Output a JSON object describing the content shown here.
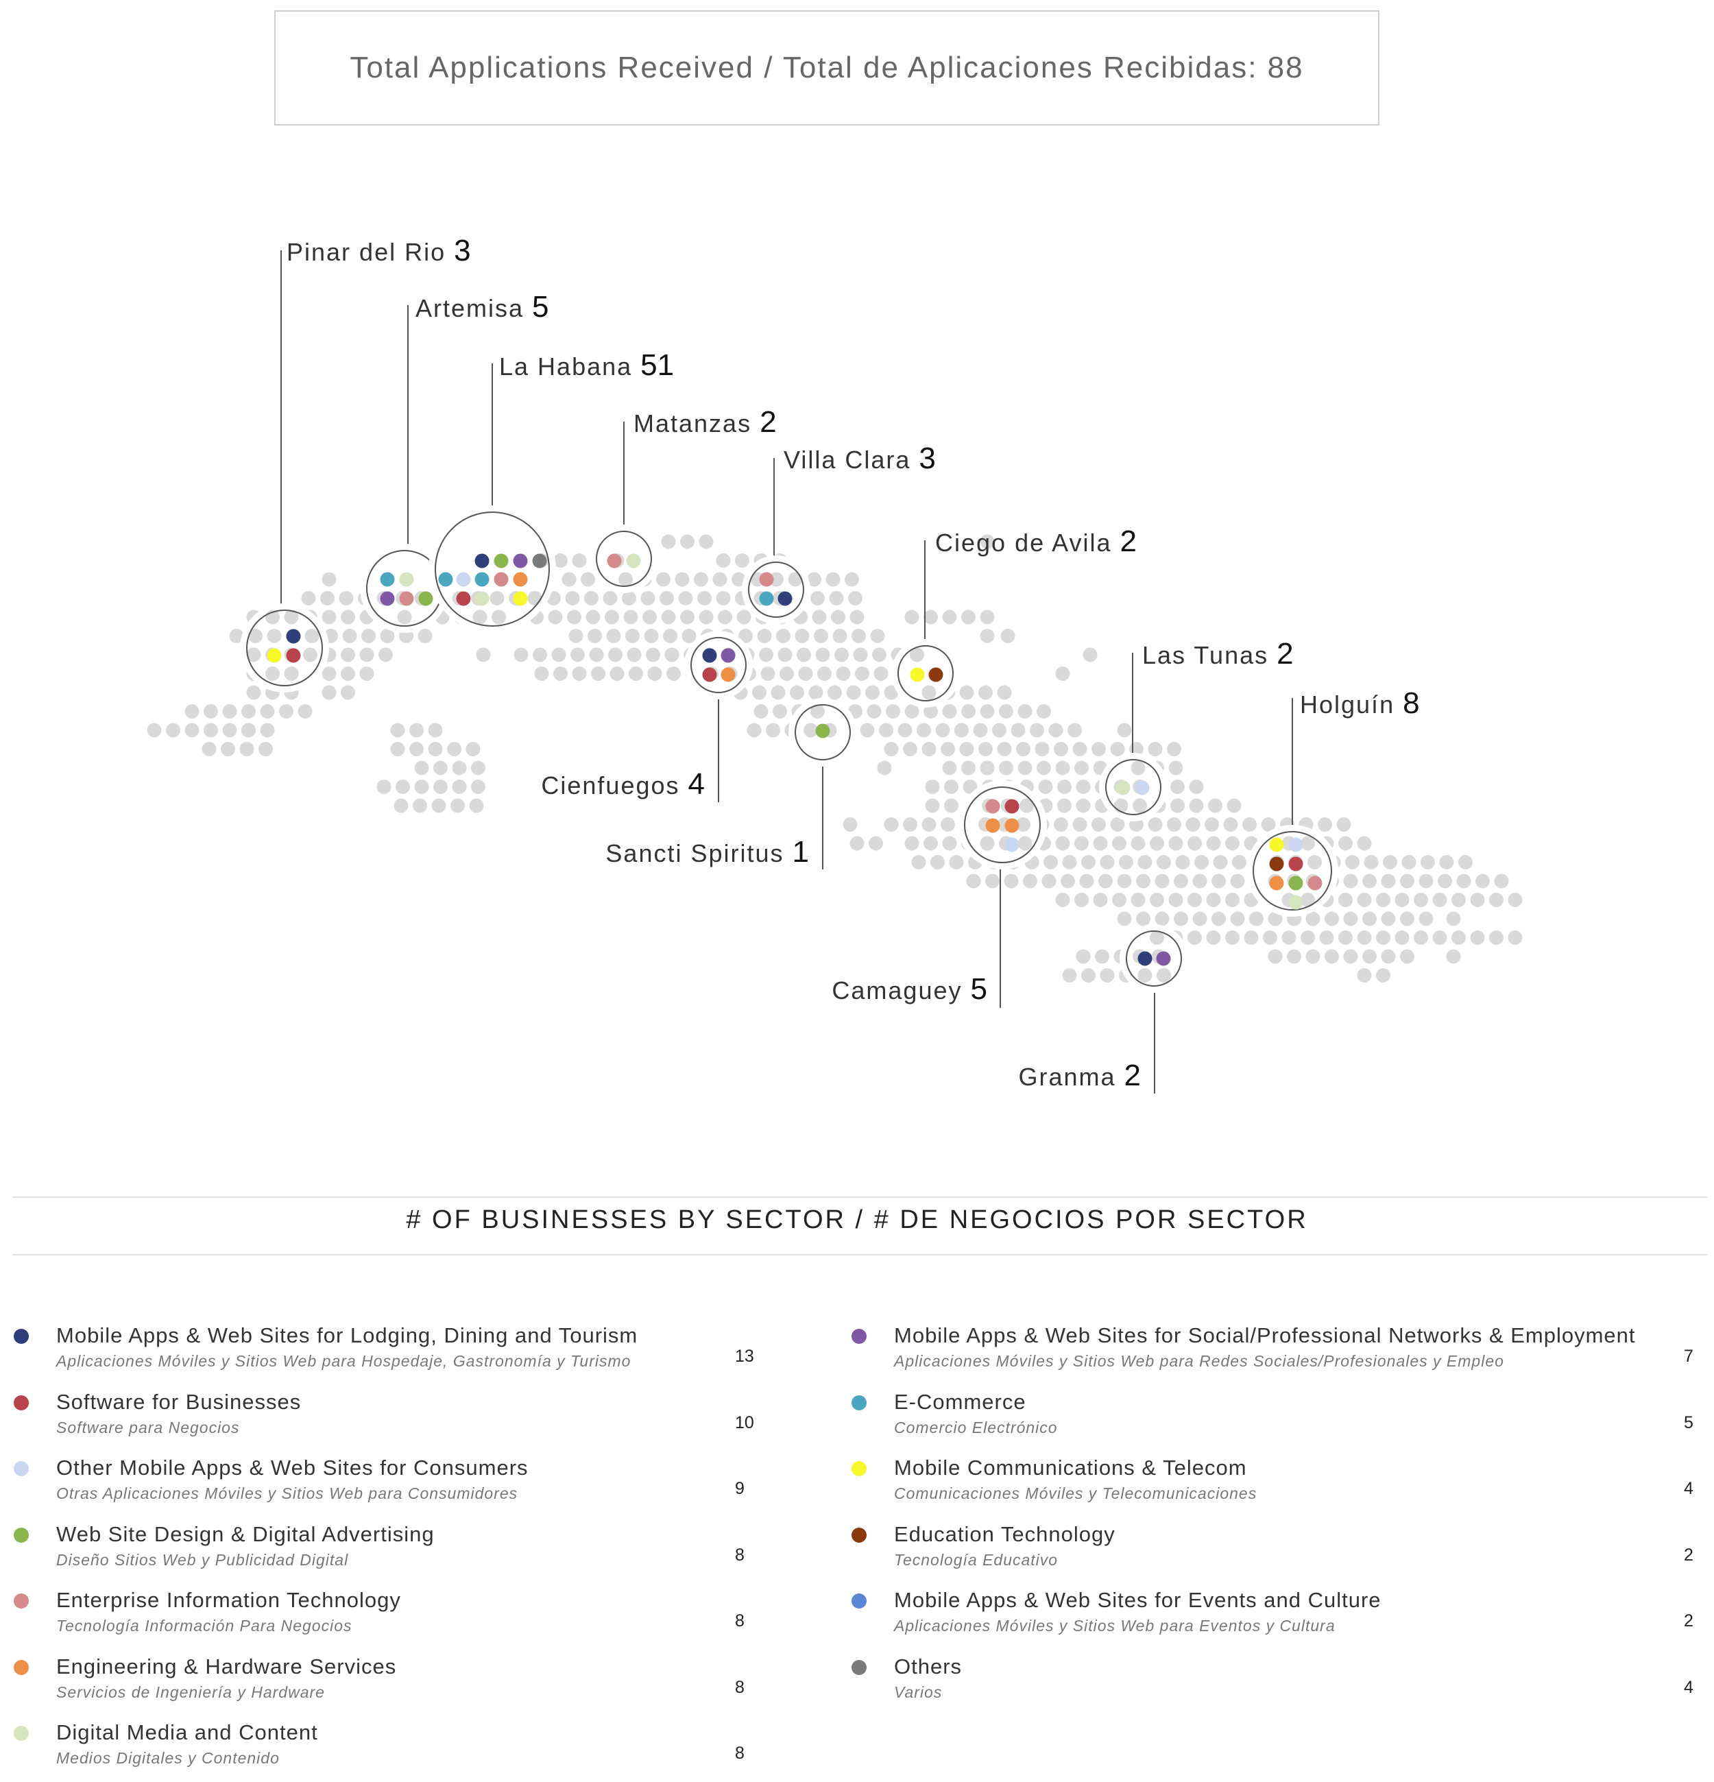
{
  "header": {
    "total_text": "Total Applications Received / Total de Aplicaciones Recibidas: 88"
  },
  "colors": {
    "map_dot": "#d9d9d9",
    "circle_stroke": "#555555",
    "leader_line": "#555555"
  },
  "provinces": [
    {
      "name": "Pinar del Rio",
      "count": "3",
      "dots": [
        "#2e3f7a",
        "#f7f72a",
        "#b8434a"
      ]
    },
    {
      "name": "Artemisa",
      "count": "5",
      "dots": [
        "#4ba6bf",
        "#d7e5bf",
        "#8057a5",
        "#d48a8a",
        "#8ab54c"
      ]
    },
    {
      "name": "La Habana",
      "count": "51",
      "dots": [
        "#2e3f7a",
        "#8ab54c",
        "#8057a5",
        "#7a7a7a",
        "#4ba6bf",
        "#c9d8f0",
        "#4ba6bf",
        "#d48a8a",
        "#ee8f47",
        "#b8434a",
        "#d7e5bf",
        "#f7f72a"
      ]
    },
    {
      "name": "Matanzas",
      "count": "2",
      "dots": [
        "#d48a8a",
        "#d7e5bf"
      ]
    },
    {
      "name": "Villa Clara",
      "count": "3",
      "dots": [
        "#d48a8a",
        "#4ba6bf",
        "#2e3f7a"
      ]
    },
    {
      "name": "Cienfuegos",
      "count": "4",
      "dots": [
        "#2e3f7a",
        "#8057a5",
        "#b8434a",
        "#ee8f47"
      ]
    },
    {
      "name": "Sancti Spiritus",
      "count": "1",
      "dots": [
        "#8ab54c"
      ]
    },
    {
      "name": "Ciego de Avila",
      "count": "2",
      "dots": [
        "#f7f72a",
        "#8b3a0f"
      ]
    },
    {
      "name": "Camaguey",
      "count": "5",
      "dots": [
        "#d48a8a",
        "#b8434a",
        "#ee8f47",
        "#ee8f47",
        "#c9d8f0"
      ]
    },
    {
      "name": "Las Tunas",
      "count": "2",
      "dots": [
        "#d7e5bf",
        "#c9d8f0"
      ]
    },
    {
      "name": "Holguín",
      "count": "8",
      "dots": [
        "#f7f72a",
        "#c9d8f0",
        "#8b3a0f",
        "#b8434a",
        "#ee8f47",
        "#8ab54c",
        "#d48a8a",
        "#d7e5bf"
      ]
    },
    {
      "name": "Granma",
      "count": "2",
      "dots": [
        "#2e3f7a",
        "#8057a5"
      ]
    }
  ],
  "sector_section": {
    "title": "# OF BUSINESSES BY SECTOR   /  # DE NEGOCIOS POR SECTOR"
  },
  "sectors_left": [
    {
      "name_en": "Mobile Apps & Web Sites for Lodging, Dining and Tourism",
      "name_es": "Aplicaciones Móviles y Sitios Web para Hospedaje, Gastronomía y Turismo",
      "count": "13",
      "color": "#2e3f7a"
    },
    {
      "name_en": "Software for Businesses",
      "name_es": "Software para Negocios",
      "count": "10",
      "color": "#b8434a"
    },
    {
      "name_en": "Other Mobile Apps & Web Sites for Consumers",
      "name_es": "Otras Aplicaciones Móviles y Sitios Web para Consumidores",
      "count": "9",
      "color": "#c9d8f0"
    },
    {
      "name_en": "Web Site Design & Digital Advertising",
      "name_es": "Diseño Sitios Web y Publicidad Digital",
      "count": "8",
      "color": "#8ab54c"
    },
    {
      "name_en": "Enterprise Information Technology",
      "name_es": "Tecnología Información Para Negocios",
      "count": "8",
      "color": "#d48a8a"
    },
    {
      "name_en": "Engineering & Hardware Services",
      "name_es": "Servicios de Ingeniería y Hardware",
      "count": "8",
      "color": "#ee8f47"
    },
    {
      "name_en": "Digital Media and Content",
      "name_es": "Medios Digitales y Contenido",
      "count": "8",
      "color": "#d7e5bf"
    }
  ],
  "sectors_right": [
    {
      "name_en": "Mobile Apps & Web Sites for Social/Professional Networks & Employment",
      "name_es": "Aplicaciones Móviles y Sitios Web para Redes Sociales/Profesionales y Empleo",
      "count": "7",
      "color": "#8057a5"
    },
    {
      "name_en": "E-Commerce",
      "name_es": "Comercio Electrónico",
      "count": "5",
      "color": "#4ba6bf"
    },
    {
      "name_en": "Mobile Communications & Telecom",
      "name_es": "Comunicaciones Móviles y Telecomunicaciones",
      "count": "4",
      "color": "#f7f72a"
    },
    {
      "name_en": "Education Technology",
      "name_es": "Tecnología Educativo",
      "count": "2",
      "color": "#8b3a0f"
    },
    {
      "name_en": "Mobile Apps & Web Sites for Events and Culture",
      "name_es": "Aplicaciones Móviles y Sitios Web para Eventos y Cultura",
      "count": "2",
      "color": "#5b86d6"
    },
    {
      "name_en": "Others",
      "name_es": "Varios",
      "count": "4",
      "color": "#7a7a7a"
    }
  ]
}
